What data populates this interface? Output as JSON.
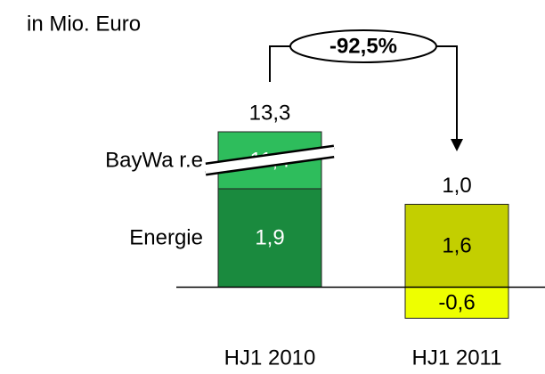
{
  "chart_data": {
    "type": "stacked_bar",
    "title": "in Mio. Euro",
    "categories": [
      "HJ1 2010",
      "HJ1 2011"
    ],
    "series": [
      {
        "name": "Energie",
        "colors": [
          "#1a8a3e",
          "#c3cf00"
        ],
        "values": [
          1.9,
          1.6
        ],
        "value_labels": [
          "1,9",
          "1,6"
        ]
      },
      {
        "name": "BayWa r.e",
        "colors": [
          "#2ebd5c",
          null
        ],
        "values": [
          11.4,
          null
        ],
        "value_labels": [
          "11,4",
          null
        ]
      },
      {
        "colors": [
          null,
          "#eeff00"
        ],
        "values": [
          null,
          -0.6
        ],
        "value_labels": [
          null,
          "-0,6"
        ]
      }
    ],
    "totals": [
      13.3,
      1.0
    ],
    "total_labels": [
      "13,3",
      "1,0"
    ],
    "change_label": "-92,5%",
    "ylim": [
      -0.8,
      3.0
    ],
    "axis_break": true
  }
}
